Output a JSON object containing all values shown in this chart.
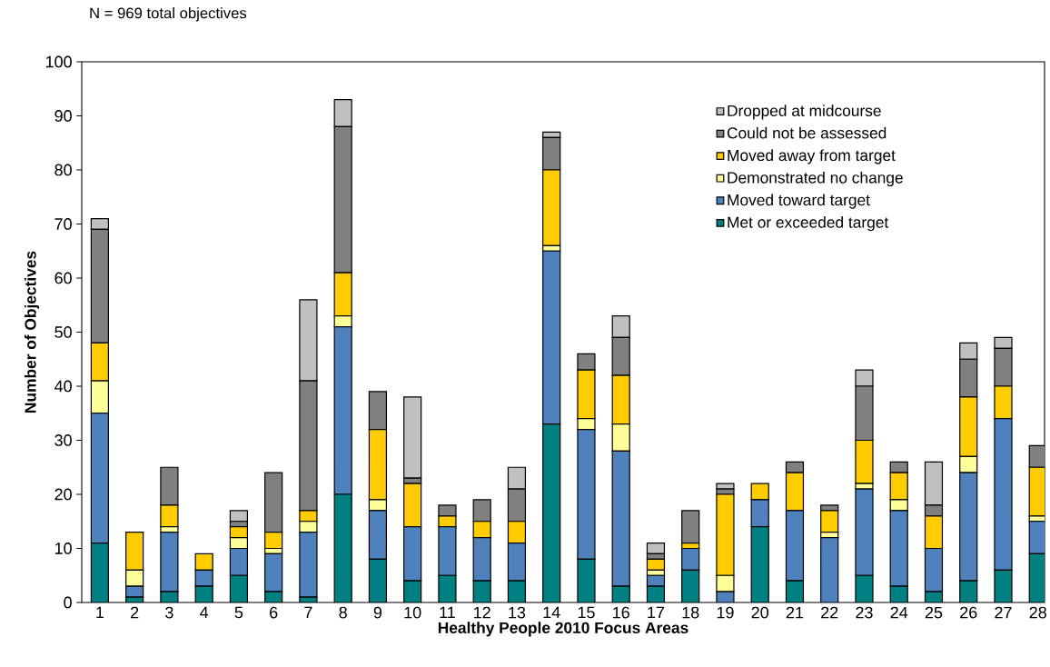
{
  "chart_data": {
    "type": "bar",
    "stacked": true,
    "xlabel": "Healthy People 2010 Focus Areas",
    "ylabel": "Number of Objectives",
    "annotations": [
      "N = 969 total objectives"
    ],
    "categories": [
      "1",
      "2",
      "3",
      "4",
      "5",
      "6",
      "7",
      "8",
      "9",
      "10",
      "11",
      "12",
      "13",
      "14",
      "15",
      "16",
      "17",
      "18",
      "19",
      "20",
      "21",
      "22",
      "23",
      "24",
      "25",
      "26",
      "27",
      "28"
    ],
    "series": [
      {
        "name": "Met or exceeded target",
        "color": "#008080",
        "values": [
          11,
          1,
          2,
          3,
          5,
          2,
          1,
          20,
          8,
          4,
          5,
          4,
          4,
          33,
          8,
          3,
          3,
          6,
          0,
          14,
          4,
          0,
          5,
          3,
          2,
          4,
          6,
          9
        ]
      },
      {
        "name": "Moved toward target",
        "color": "#4f81bd",
        "values": [
          24,
          2,
          11,
          3,
          5,
          7,
          12,
          31,
          9,
          10,
          9,
          8,
          7,
          32,
          24,
          25,
          2,
          4,
          2,
          5,
          13,
          12,
          16,
          14,
          8,
          20,
          28,
          6
        ]
      },
      {
        "name": "Demonstrated no change",
        "color": "#ffff99",
        "values": [
          6,
          3,
          1,
          0,
          2,
          1,
          2,
          2,
          2,
          0,
          0,
          0,
          0,
          1,
          2,
          5,
          1,
          0,
          3,
          0,
          0,
          1,
          1,
          2,
          0,
          3,
          0,
          1
        ]
      },
      {
        "name": "Moved away from target",
        "color": "#ffcc00",
        "values": [
          7,
          7,
          4,
          3,
          2,
          3,
          2,
          8,
          13,
          8,
          2,
          3,
          4,
          14,
          9,
          9,
          2,
          1,
          15,
          3,
          7,
          4,
          8,
          5,
          6,
          11,
          6,
          9
        ]
      },
      {
        "name": "Could not be assessed",
        "color": "#808080",
        "values": [
          21,
          0,
          7,
          0,
          1,
          11,
          24,
          27,
          7,
          1,
          2,
          4,
          6,
          6,
          3,
          7,
          1,
          6,
          1,
          0,
          2,
          1,
          10,
          2,
          2,
          7,
          7,
          4
        ]
      },
      {
        "name": "Dropped at midcourse",
        "color": "#c0c0c0",
        "values": [
          2,
          0,
          0,
          0,
          2,
          0,
          15,
          5,
          0,
          15,
          0,
          0,
          4,
          1,
          0,
          4,
          2,
          0,
          1,
          0,
          0,
          0,
          3,
          0,
          8,
          3,
          2,
          0
        ]
      }
    ],
    "ylim": [
      0,
      100
    ],
    "yticks": [
      0,
      10,
      20,
      30,
      40,
      50,
      60,
      70,
      80,
      90,
      100
    ],
    "grid": false,
    "legend": "top right"
  }
}
